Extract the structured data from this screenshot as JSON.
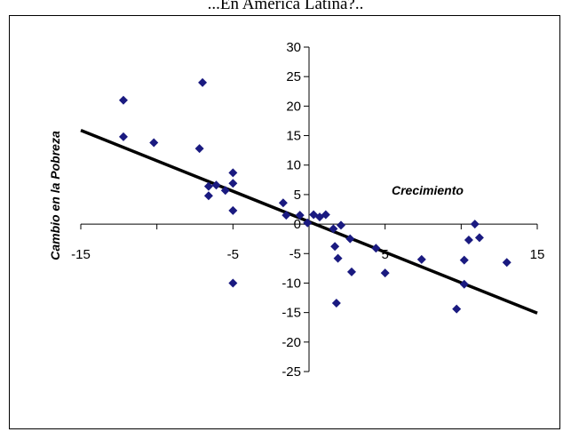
{
  "chart_data": {
    "type": "scatter",
    "title": "...En América Latina?..",
    "xlabel": "Crecimiento",
    "ylabel": "Cambio en la Pobreza",
    "xlim": [
      -15,
      15
    ],
    "ylim": [
      -25,
      30
    ],
    "x_ticks": [
      -15,
      -5,
      5,
      15
    ],
    "x_tick_labels": [
      "-15",
      "-5",
      "5",
      "15"
    ],
    "y_ticks": [
      30,
      25,
      20,
      15,
      10,
      5,
      0,
      -5,
      -10,
      -15,
      -20,
      -25
    ],
    "y_tick_labels": [
      "30",
      "25",
      "20",
      "15",
      "10",
      "5",
      "0",
      "-5",
      "-10",
      "-15",
      "-20",
      "-25"
    ],
    "grid": false,
    "marker_color": "#1a1a80",
    "trendline": {
      "x": [
        -15,
        15
      ],
      "y": [
        15.9,
        -15.1
      ],
      "color": "#000000"
    },
    "points": [
      {
        "x": -12.2,
        "y": 21.0
      },
      {
        "x": -12.2,
        "y": 14.8
      },
      {
        "x": -10.2,
        "y": 13.8
      },
      {
        "x": -7.0,
        "y": 24.0
      },
      {
        "x": -7.2,
        "y": 12.8
      },
      {
        "x": -6.6,
        "y": 6.4
      },
      {
        "x": -6.6,
        "y": 4.8
      },
      {
        "x": -6.1,
        "y": 6.6
      },
      {
        "x": -5.5,
        "y": 5.7
      },
      {
        "x": -5.0,
        "y": 8.7
      },
      {
        "x": -5.0,
        "y": 6.9
      },
      {
        "x": -5.0,
        "y": 2.3
      },
      {
        "x": -5.0,
        "y": -10.0
      },
      {
        "x": -1.7,
        "y": 3.6
      },
      {
        "x": -1.5,
        "y": 1.5
      },
      {
        "x": -0.6,
        "y": 1.5
      },
      {
        "x": -0.1,
        "y": 0.2
      },
      {
        "x": 0.3,
        "y": 1.6
      },
      {
        "x": 0.7,
        "y": 1.2
      },
      {
        "x": 1.1,
        "y": 1.6
      },
      {
        "x": 1.6,
        "y": -0.8
      },
      {
        "x": 2.1,
        "y": -0.2
      },
      {
        "x": 1.7,
        "y": -3.8
      },
      {
        "x": 1.9,
        "y": -5.8
      },
      {
        "x": 1.8,
        "y": -13.4
      },
      {
        "x": 2.7,
        "y": -2.5
      },
      {
        "x": 2.8,
        "y": -8.1
      },
      {
        "x": 4.4,
        "y": -4.1
      },
      {
        "x": 5.0,
        "y": -8.3
      },
      {
        "x": 7.4,
        "y": -6.0
      },
      {
        "x": 9.7,
        "y": -14.4
      },
      {
        "x": 10.2,
        "y": -6.1
      },
      {
        "x": 10.2,
        "y": -10.2
      },
      {
        "x": 10.5,
        "y": -2.7
      },
      {
        "x": 10.9,
        "y": 0.0
      },
      {
        "x": 11.2,
        "y": -2.3
      },
      {
        "x": 13.0,
        "y": -6.5
      }
    ]
  }
}
